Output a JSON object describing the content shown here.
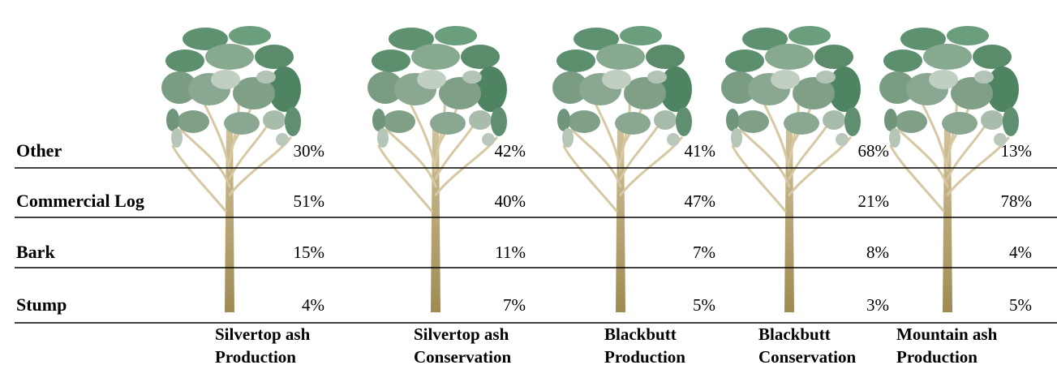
{
  "table": {
    "rows": [
      {
        "label": "Other",
        "values": [
          "30%",
          "42%",
          "41%",
          "68%",
          "13%"
        ]
      },
      {
        "label": "Commercial Log",
        "values": [
          "51%",
          "40%",
          "47%",
          "21%",
          "78%"
        ]
      },
      {
        "label": "Bark",
        "values": [
          "15%",
          "11%",
          "7%",
          "8%",
          "4%"
        ]
      },
      {
        "label": "Stump",
        "values": [
          "4%",
          "7%",
          "5%",
          "3%",
          "5%"
        ]
      }
    ],
    "columns": [
      {
        "lines": [
          "Silvertop ash",
          "Production"
        ]
      },
      {
        "lines": [
          "Silvertop ash",
          "Conservation"
        ]
      },
      {
        "lines": [
          "Blackbutt",
          "Production"
        ]
      },
      {
        "lines": [
          "Blackbutt",
          "Conservation"
        ]
      },
      {
        "lines": [
          "Mountain ash",
          "Production"
        ]
      }
    ]
  }
}
